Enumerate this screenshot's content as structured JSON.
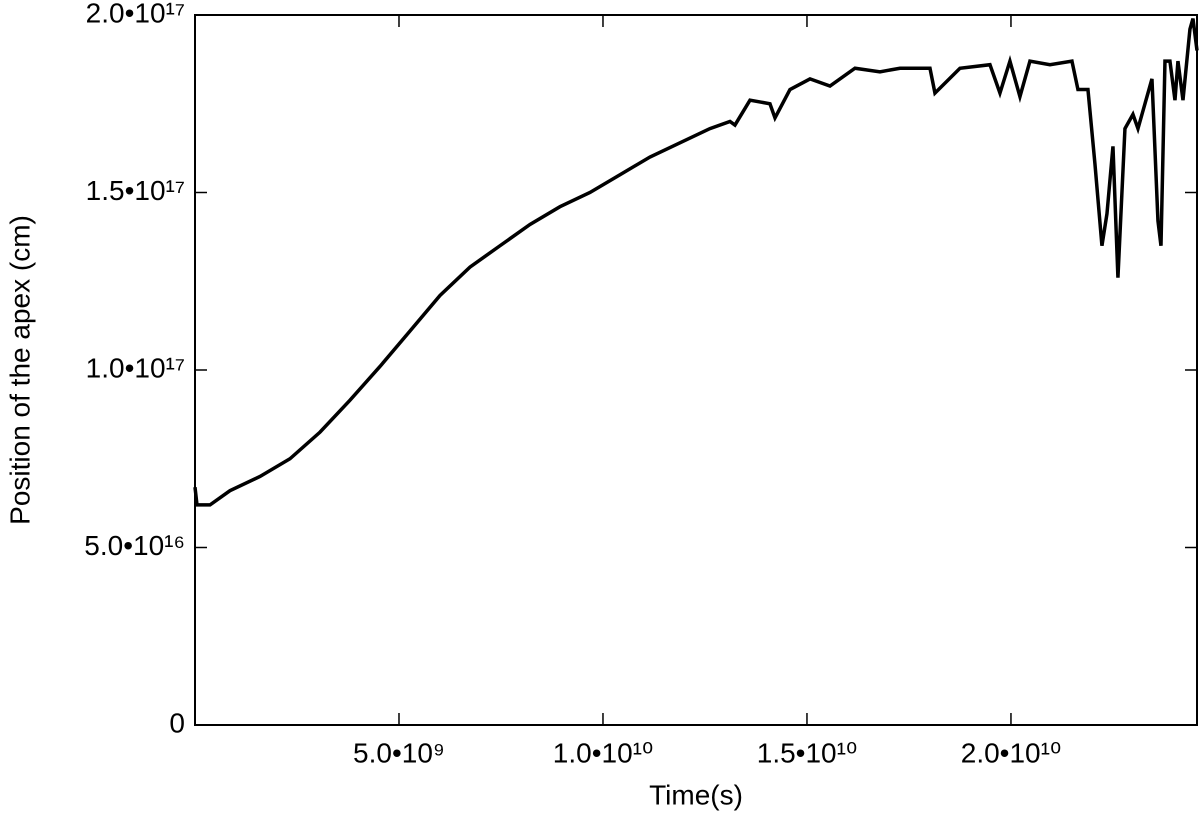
{
  "chart_data": {
    "type": "line",
    "xlabel": "Time(s)",
    "ylabel": "Position of the apex (cm)",
    "xlim": [
      0,
      24560000000.0
    ],
    "ylim": [
      0,
      2e+17
    ],
    "xticks": [
      {
        "value": 5000000000.0,
        "label": "5.0•10⁹"
      },
      {
        "value": 10000000000.0,
        "label": "1.0•10¹⁰"
      },
      {
        "value": 15000000000.0,
        "label": "1.5•10¹⁰"
      },
      {
        "value": 20000000000.0,
        "label": "2.0•10¹⁰"
      }
    ],
    "yticks": [
      0,
      {
        "value": 5e+16,
        "label": "5.0•10¹⁶"
      },
      {
        "value": 1e+17,
        "label": "1.0•10¹⁷"
      },
      {
        "value": 1.5e+17,
        "label": "1.5•10¹⁷"
      },
      {
        "value": 2e+17,
        "label": "2.0•10¹⁷"
      }
    ],
    "x": [
      0,
      49000000.0,
      368000000.0,
      858000000.0,
      1593000000.0,
      2328000000.0,
      3064000000.0,
      3799000000.0,
      4534000000.0,
      5270000000.0,
      6005000000.0,
      6740000000.0,
      7475000000.0,
      8211000000.0,
      8946000000.0,
      9681000000.0,
      10417000000.0,
      11152000000.0,
      11887000000.0,
      12623000000.0,
      13113000000.0,
      13235000000.0,
      13603000000.0,
      14093000000.0,
      14216000000.0,
      14583000000.0,
      15074000000.0,
      15564000000.0,
      16177000000.0,
      16789000000.0,
      17280000000.0,
      18015000000.0,
      18137000000.0,
      18750000000.0,
      19485000000.0,
      19730000000.0,
      19975000000.0,
      20220000000.0,
      20465000000.0,
      20956000000.0,
      21495000000.0,
      21642000000.0,
      21887000000.0,
      22059000000.0,
      22230000000.0,
      22353000000.0,
      22500000000.0,
      22622000000.0,
      22794000000.0,
      22990000000.0,
      23113000000.0,
      23358000000.0,
      23456000000.0,
      23603000000.0,
      23677000000.0,
      23775000000.0,
      23897000000.0,
      24020000000.0,
      24093000000.0,
      24216000000.0,
      24387000000.0,
      24461000000.0,
      24560000000.0
    ],
    "series": [
      {
        "color": "#000000",
        "values": [
          6.7e+16,
          6.2e+16,
          6.2e+16,
          6.6e+16,
          7e+16,
          7.5e+16,
          8.25e+16,
          9.15e+16,
          1.01e+17,
          1.11e+17,
          1.21e+17,
          1.29e+17,
          1.35e+17,
          1.41e+17,
          1.46e+17,
          1.5e+17,
          1.55e+17,
          1.6e+17,
          1.64e+17,
          1.68e+17,
          1.7e+17,
          1.69e+17,
          1.76e+17,
          1.75e+17,
          1.71e+17,
          1.79e+17,
          1.82e+17,
          1.8e+17,
          1.85e+17,
          1.84e+17,
          1.85e+17,
          1.85e+17,
          1.78e+17,
          1.85e+17,
          1.86e+17,
          1.78e+17,
          1.87e+17,
          1.77e+17,
          1.87e+17,
          1.86e+17,
          1.87e+17,
          1.79e+17,
          1.79e+17,
          1.58e+17,
          1.35e+17,
          1.44e+17,
          1.63e+17,
          1.26e+17,
          1.68e+17,
          1.72e+17,
          1.68e+17,
          1.78e+17,
          1.82e+17,
          1.42e+17,
          1.35e+17,
          1.87e+17,
          1.87e+17,
          1.76e+17,
          1.87e+17,
          1.76e+17,
          1.96e+17,
          1.99e+17,
          1.9e+17
        ]
      }
    ]
  }
}
